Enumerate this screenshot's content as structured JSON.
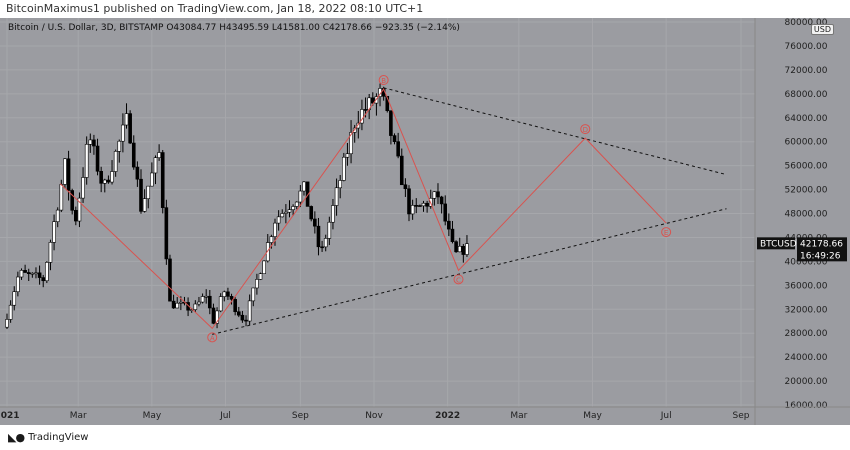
{
  "header": {
    "publish_text": "BitcoinMaximus1 published on TradingView.com, Jan 18, 2022 08:10 UTC+1"
  },
  "legend": {
    "symbol": "Bitcoin / U.S. Dollar, 3D, BITSTAMP",
    "open_label": "O",
    "open": "43084.77",
    "high_label": "H",
    "high": "43495.59",
    "low_label": "L",
    "low": "41581.00",
    "close_label": "C",
    "close": "42178.66",
    "change": "−923.35 (−2.14%)"
  },
  "currency": "USD",
  "price_tag": {
    "ticker": "BTCUSD",
    "price": "42178.66",
    "countdown": "16:49:26"
  },
  "footer": {
    "brand": "TradingView"
  },
  "colors": {
    "background": "#9b9ca1",
    "candle_up": "#ffffff",
    "candle_down": "#000000",
    "wave": "#d9534f",
    "trendline": "#111111"
  },
  "chart_data": {
    "type": "candlestick",
    "title": "Bitcoin / U.S. Dollar, 3D, BITSTAMP",
    "ylim": [
      16000,
      80000
    ],
    "y_ticks": [
      "80000.00",
      "76000.00",
      "72000.00",
      "68000.00",
      "64000.00",
      "60000.00",
      "56000.00",
      "52000.00",
      "48000.00",
      "44000.00",
      "40000.00",
      "36000.00",
      "32000.00",
      "28000.00",
      "24000.00",
      "20000.00",
      "16000.00"
    ],
    "x_labels": [
      "2021",
      "Mar",
      "May",
      "Jul",
      "Sep",
      "Nov",
      "2022",
      "Mar",
      "May",
      "Jul",
      "Sep"
    ],
    "x_dates": [
      "2021-01-01",
      "2021-03-01",
      "2021-05-01",
      "2021-07-01",
      "2021-09-01",
      "2021-11-01",
      "2022-01-01",
      "2022-03-01",
      "2022-05-01",
      "2022-07-01",
      "2022-09-01"
    ],
    "price_path": [
      [
        "2021-01-01",
        29000
      ],
      [
        "2021-01-14",
        38000
      ],
      [
        "2021-02-03",
        37000
      ],
      [
        "2021-02-21",
        56000
      ],
      [
        "2021-03-01",
        46000
      ],
      [
        "2021-03-13",
        61000
      ],
      [
        "2021-03-25",
        52000
      ],
      [
        "2021-04-14",
        64000
      ],
      [
        "2021-04-25",
        49000
      ],
      [
        "2021-05-10",
        58000
      ],
      [
        "2021-05-19",
        33000
      ],
      [
        "2021-06-08",
        32000
      ],
      [
        "2021-06-20",
        35000
      ],
      [
        "2021-06-22",
        29000
      ],
      [
        "2021-07-03",
        35000
      ],
      [
        "2021-07-20",
        30000
      ],
      [
        "2021-08-14",
        47000
      ],
      [
        "2021-09-07",
        52000
      ],
      [
        "2021-09-21",
        41000
      ],
      [
        "2021-10-20",
        64000
      ],
      [
        "2021-11-10",
        68000
      ],
      [
        "2021-12-04",
        48000
      ],
      [
        "2021-12-27",
        51000
      ],
      [
        "2022-01-10",
        41000
      ],
      [
        "2022-01-18",
        42178
      ]
    ],
    "waves": [
      {
        "label": "A",
        "x": "2021-06-20",
        "y": 28800
      },
      {
        "label": "B",
        "x": "2021-11-09",
        "y": 68800
      },
      {
        "label": "C",
        "x": "2022-01-10",
        "y": 38500
      },
      {
        "label": "D",
        "x": "2022-04-25",
        "y": 60600
      },
      {
        "label": "E",
        "x": "2022-07-01",
        "y": 46400
      }
    ],
    "trendlines": [
      {
        "name": "upper",
        "from": [
          "2021-11-09",
          69000
        ],
        "to": [
          "2022-08-20",
          54500
        ]
      },
      {
        "name": "lower",
        "from": [
          "2021-06-20",
          27800
        ],
        "to": [
          "2022-08-20",
          48800
        ]
      }
    ]
  }
}
